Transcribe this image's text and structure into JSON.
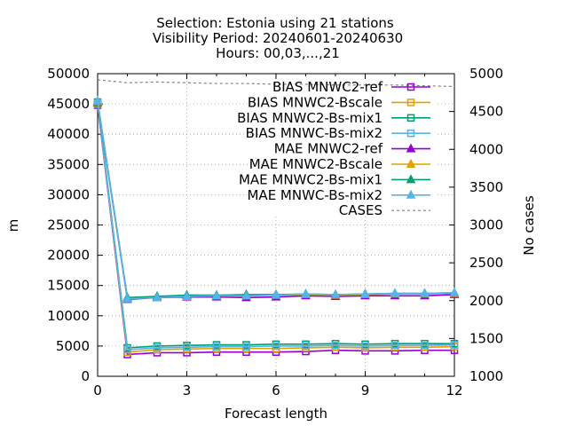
{
  "chart_data": {
    "type": "line",
    "title_lines": [
      "Selection: Estonia using    21 stations",
      "Visibility   Period: 20240601-20240630",
      "Hours: 00,03,...,21"
    ],
    "xlabel": "Forecast length",
    "ylabel": "m",
    "y2label": "No cases",
    "xlim": [
      0,
      12
    ],
    "ylim": [
      0,
      50000
    ],
    "y2lim": [
      1000,
      5000
    ],
    "x_ticks": [
      "0",
      "3",
      "6",
      "9",
      "12"
    ],
    "y_ticks": [
      "0",
      "5000",
      "10000",
      "15000",
      "20000",
      "25000",
      "30000",
      "35000",
      "40000",
      "45000",
      "50000"
    ],
    "y2_ticks": [
      "1000",
      "1500",
      "2000",
      "2500",
      "3000",
      "3500",
      "4000",
      "4500",
      "5000"
    ],
    "grid": true,
    "legend_position": "top-right",
    "x": [
      0,
      1,
      2,
      3,
      4,
      5,
      6,
      7,
      8,
      9,
      10,
      11,
      12
    ],
    "series": [
      {
        "name": "BIAS MNWC2-ref",
        "color": "#9400d3",
        "marker": "open-square",
        "axis": "y",
        "values": [
          44800,
          3600,
          3900,
          3900,
          4000,
          4000,
          4000,
          4100,
          4300,
          4200,
          4200,
          4300,
          4300
        ]
      },
      {
        "name": "BIAS MNWC2-Bscale",
        "color": "#e69f00",
        "marker": "open-square",
        "axis": "y",
        "values": [
          45000,
          4000,
          4400,
          4500,
          4600,
          4600,
          4600,
          4700,
          4800,
          4700,
          4800,
          4800,
          4900
        ]
      },
      {
        "name": "BIAS MNWC2-Bs-mix1",
        "color": "#009e73",
        "marker": "open-square",
        "axis": "y",
        "values": [
          45300,
          4700,
          5000,
          5100,
          5200,
          5200,
          5300,
          5300,
          5400,
          5300,
          5400,
          5400,
          5400
        ]
      },
      {
        "name": "BIAS MNWC-Bs-mix2",
        "color": "#56b4e9",
        "marker": "open-square",
        "axis": "y",
        "values": [
          45100,
          4400,
          4700,
          4800,
          4900,
          4900,
          5000,
          5000,
          5100,
          5000,
          5100,
          5100,
          5200
        ]
      },
      {
        "name": "MAE MNWC2-ref",
        "color": "#9400d3",
        "marker": "filled-triangle",
        "axis": "y",
        "values": [
          45200,
          12700,
          13000,
          13100,
          13100,
          13000,
          13100,
          13300,
          13200,
          13300,
          13300,
          13300,
          13500
        ]
      },
      {
        "name": "MAE MNWC2-Bscale",
        "color": "#e69f00",
        "marker": "filled-triangle",
        "axis": "y",
        "values": [
          45300,
          12900,
          13100,
          13300,
          13300,
          13300,
          13400,
          13500,
          13400,
          13500,
          13600,
          13600,
          13700
        ]
      },
      {
        "name": "MAE MNWC2-Bs-mix1",
        "color": "#009e73",
        "marker": "filled-triangle",
        "axis": "y",
        "values": [
          45400,
          13000,
          13200,
          13400,
          13400,
          13500,
          13500,
          13600,
          13500,
          13600,
          13700,
          13700,
          13800
        ]
      },
      {
        "name": "MAE MNWC-Bs-mix2",
        "color": "#56b4e9",
        "marker": "filled-triangle",
        "axis": "y",
        "values": [
          45500,
          12800,
          13000,
          13200,
          13300,
          13300,
          13400,
          13600,
          13500,
          13600,
          13700,
          13700,
          13800
        ]
      },
      {
        "name": "CASES",
        "color": "#808080",
        "marker": "none",
        "dash": true,
        "axis": "y2",
        "values": [
          4920,
          4880,
          4890,
          4880,
          4870,
          4870,
          4860,
          4860,
          4850,
          4850,
          4850,
          4840,
          4830
        ]
      }
    ]
  }
}
